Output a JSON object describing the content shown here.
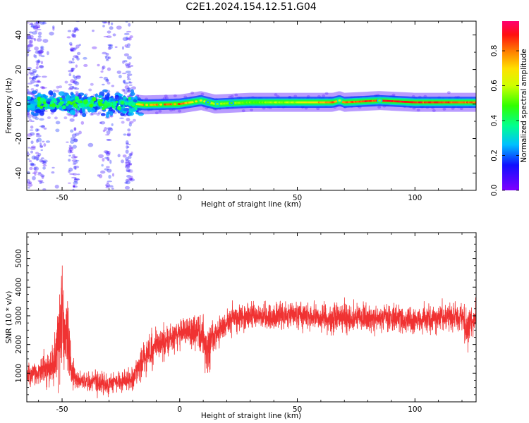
{
  "figure_title": "C2E1.2024.154.12.51.G04",
  "colors": {
    "snr_line": "#f03232",
    "ridge_core": "#ff1030",
    "ridge_glow": "#10e0a0",
    "spread": "#7a32f0"
  },
  "chart_data": [
    {
      "type": "heatmap",
      "title": "",
      "xlabel": "Height of straight line (km)",
      "ylabel": "Frequency (Hz)",
      "xlim": [
        -65,
        126
      ],
      "ylim": [
        -50,
        48
      ],
      "xticks": [
        -50,
        0,
        50,
        100
      ],
      "yticks": [
        -40,
        -20,
        0,
        20,
        40
      ],
      "grid": false,
      "colorbar": {
        "label": "Normalized spectral amplitude",
        "range": [
          0,
          0.97
        ],
        "ticks": [
          0.0,
          0.2,
          0.4,
          0.6,
          0.8
        ],
        "colormap": "gist_rainbow_r"
      },
      "ridge": {
        "x": [
          -65,
          -50,
          -40,
          -30,
          -22,
          -15,
          0,
          7,
          9,
          15,
          30,
          50,
          65,
          68,
          70,
          85,
          100,
          126
        ],
        "frequency_hz": [
          0,
          0.5,
          0.5,
          0.5,
          0.5,
          -0.5,
          0,
          1.5,
          2,
          0,
          1,
          1,
          1,
          2,
          1,
          2,
          1,
          1
        ],
        "amplitude": [
          0.5,
          0.4,
          0.45,
          0.4,
          0.5,
          0.75,
          0.85,
          0.6,
          0.7,
          0.6,
          0.5,
          0.6,
          0.8,
          0.7,
          0.8,
          0.9,
          0.9,
          0.8
        ]
      },
      "scatter_zone_x": [
        -65,
        -20
      ],
      "scatter_zone_frequency_hz": [
        -50,
        48
      ]
    },
    {
      "type": "line",
      "title": "",
      "xlabel": "Height of straight line (km)",
      "ylabel": "SNR (10 * v/v)",
      "xlim": [
        -65,
        126
      ],
      "ylim": [
        0,
        5900
      ],
      "xticks": [
        -50,
        0,
        50,
        100
      ],
      "yticks": [
        1000,
        2000,
        3000,
        4000,
        5000
      ],
      "grid": false,
      "series": [
        {
          "envelope_x": [
            -65,
            -62,
            -58,
            -55,
            -52,
            -50,
            -48,
            -46,
            -44,
            -40,
            -35,
            -30,
            -25,
            -20,
            -17,
            -12,
            -8,
            -4,
            0,
            4,
            8,
            10,
            12,
            14,
            20,
            25,
            30,
            40,
            50,
            60,
            70,
            80,
            90,
            100,
            110,
            120,
            122,
            124,
            126
          ],
          "mean": [
            900,
            1000,
            1100,
            1200,
            1800,
            2700,
            3000,
            1100,
            800,
            700,
            700,
            600,
            700,
            800,
            1300,
            1800,
            2100,
            2200,
            2400,
            2450,
            2500,
            2300,
            1500,
            2200,
            2800,
            2900,
            3000,
            3000,
            3050,
            2950,
            2950,
            2900,
            2950,
            2850,
            2900,
            2900,
            2600,
            2800,
            3000
          ],
          "spread": [
            350,
            400,
            450,
            550,
            1300,
            1900,
            1800,
            500,
            300,
            300,
            350,
            350,
            350,
            350,
            500,
            550,
            550,
            550,
            500,
            600,
            650,
            700,
            900,
            600,
            450,
            450,
            450,
            450,
            450,
            450,
            500,
            450,
            450,
            450,
            450,
            450,
            900,
            600,
            450
          ]
        }
      ]
    }
  ]
}
